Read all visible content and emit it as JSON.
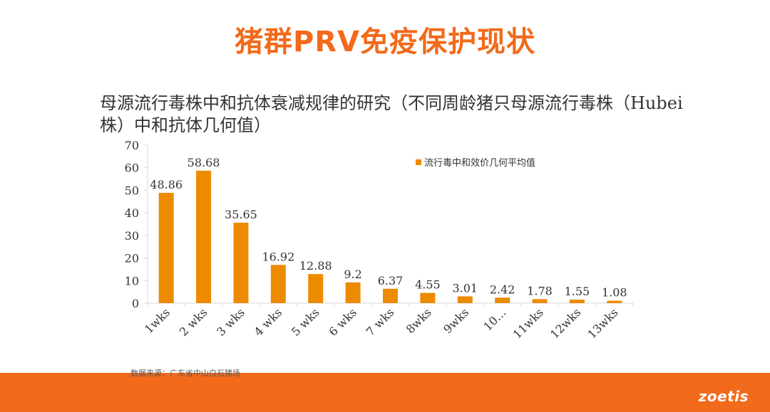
{
  "slide": {
    "title": "猪群PRV免疫保护现状",
    "source_note": "数据来源：广东省中山白石猪场",
    "logo_text": "zoetis"
  },
  "colors": {
    "brand_orange": "#f26a1b",
    "bar_orange": "#ed8b00",
    "axis": "#d9d9d9",
    "text": "#333333"
  },
  "chart_data": {
    "type": "bar",
    "title": "母源流行毒株中和抗体衰减规律的研究（不同周龄猪只母源流行毒株（Hubei株）中和抗体几何值）",
    "categories": [
      "1wks",
      "2 wks",
      "3 wks",
      "4 wks",
      "5 wks",
      "6 wks",
      "7 wks",
      "8wks",
      "9wks",
      "10…",
      "11wks",
      "12wks",
      "13wks"
    ],
    "series": [
      {
        "name": "流行毒中和效价几何平均值",
        "values": [
          48.86,
          58.68,
          35.65,
          16.92,
          12.88,
          9.2,
          6.37,
          4.55,
          3.01,
          2.42,
          1.78,
          1.55,
          1.08
        ],
        "labels": [
          "48.86",
          "58.68",
          "35.65",
          "16.92",
          "12.88",
          "9.2",
          "6.37",
          "4.55",
          "3.01",
          "2.42",
          "1.78",
          "1.55",
          "1.08"
        ]
      }
    ],
    "ylim": [
      0,
      70
    ],
    "yticks": [
      "0",
      "10",
      "20",
      "30",
      "40",
      "50",
      "60",
      "70"
    ],
    "grid": false,
    "legend_position": "top-right",
    "xlabel": "",
    "ylabel": ""
  }
}
